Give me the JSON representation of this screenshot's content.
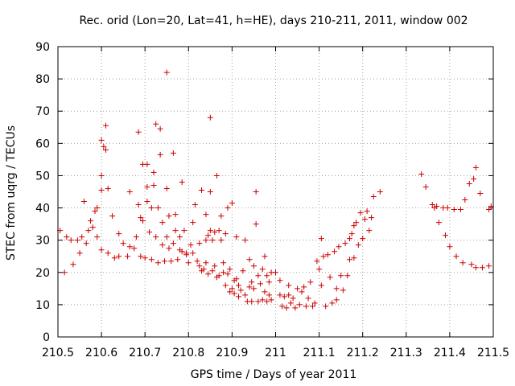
{
  "chart_data": {
    "type": "scatter",
    "title": "Rec. orid (Lon=20, Lat=41, h=HE), days 210-211, 2011, window 002",
    "xlabel": "GPS time / Days of year 2011",
    "ylabel": "STEC from uqrg / TECUs",
    "xlim": [
      210.5,
      211.5
    ],
    "ylim": [
      0,
      90
    ],
    "x_ticks": [
      "210.5",
      "210.6",
      "210.7",
      "210.8",
      "210.9",
      "211",
      "211.1",
      "211.2",
      "211.3",
      "211.4",
      "211.5"
    ],
    "y_ticks": [
      "0",
      "10",
      "20",
      "30",
      "40",
      "50",
      "60",
      "70",
      "80",
      "90"
    ],
    "grid": true,
    "marker": "plus",
    "color": "#cc0000",
    "points": [
      [
        210.505,
        33
      ],
      [
        210.515,
        20
      ],
      [
        210.52,
        31
      ],
      [
        210.53,
        30
      ],
      [
        210.535,
        22.5
      ],
      [
        210.545,
        30
      ],
      [
        210.55,
        26
      ],
      [
        210.555,
        31
      ],
      [
        210.56,
        42
      ],
      [
        210.565,
        29
      ],
      [
        210.57,
        33
      ],
      [
        210.575,
        36
      ],
      [
        210.58,
        34
      ],
      [
        210.585,
        39
      ],
      [
        210.59,
        31
      ],
      [
        210.59,
        40
      ],
      [
        210.6,
        27
      ],
      [
        210.6,
        45.5
      ],
      [
        210.6,
        50
      ],
      [
        210.6,
        61
      ],
      [
        210.605,
        59
      ],
      [
        210.61,
        65.5
      ],
      [
        210.61,
        58
      ],
      [
        210.615,
        46
      ],
      [
        210.615,
        26
      ],
      [
        210.625,
        37.5
      ],
      [
        210.63,
        24.5
      ],
      [
        210.64,
        25
      ],
      [
        210.64,
        32
      ],
      [
        210.65,
        29
      ],
      [
        210.66,
        25
      ],
      [
        210.665,
        45
      ],
      [
        210.665,
        28
      ],
      [
        210.675,
        27.5
      ],
      [
        210.68,
        31
      ],
      [
        210.685,
        41
      ],
      [
        210.685,
        63.5
      ],
      [
        210.69,
        25
      ],
      [
        210.69,
        37
      ],
      [
        210.695,
        53.5
      ],
      [
        210.695,
        36
      ],
      [
        210.7,
        24.5
      ],
      [
        210.705,
        46.5
      ],
      [
        210.705,
        42
      ],
      [
        210.705,
        53.5
      ],
      [
        210.71,
        32.5
      ],
      [
        210.715,
        24
      ],
      [
        210.715,
        40
      ],
      [
        210.72,
        47
      ],
      [
        210.72,
        51
      ],
      [
        210.725,
        31
      ],
      [
        210.725,
        66
      ],
      [
        210.73,
        40
      ],
      [
        210.73,
        23
      ],
      [
        210.735,
        64.5
      ],
      [
        210.735,
        56.5
      ],
      [
        210.74,
        28.5
      ],
      [
        210.74,
        35.5
      ],
      [
        210.745,
        23.5
      ],
      [
        210.75,
        82
      ],
      [
        210.75,
        46
      ],
      [
        210.75,
        31
      ],
      [
        210.755,
        37.5
      ],
      [
        210.755,
        27.5
      ],
      [
        210.76,
        23.5
      ],
      [
        210.765,
        57
      ],
      [
        210.765,
        29
      ],
      [
        210.77,
        33
      ],
      [
        210.77,
        38
      ],
      [
        210.775,
        24
      ],
      [
        210.78,
        27
      ],
      [
        210.78,
        31
      ],
      [
        210.785,
        48
      ],
      [
        210.785,
        26.5
      ],
      [
        210.79,
        33
      ],
      [
        210.795,
        25.5
      ],
      [
        210.795,
        26
      ],
      [
        210.8,
        23
      ],
      [
        210.805,
        28.5
      ],
      [
        210.81,
        26
      ],
      [
        210.81,
        35.5
      ],
      [
        210.815,
        41
      ],
      [
        210.82,
        23.5
      ],
      [
        210.825,
        22
      ],
      [
        210.825,
        29
      ],
      [
        210.83,
        45.5
      ],
      [
        210.83,
        20.5
      ],
      [
        210.835,
        21
      ],
      [
        210.84,
        30
      ],
      [
        210.84,
        23
      ],
      [
        210.84,
        38
      ],
      [
        210.845,
        31.5
      ],
      [
        210.845,
        19.5
      ],
      [
        210.85,
        68
      ],
      [
        210.85,
        45
      ],
      [
        210.85,
        33
      ],
      [
        210.855,
        20.5
      ],
      [
        210.855,
        30
      ],
      [
        210.86,
        22
      ],
      [
        210.86,
        32.5
      ],
      [
        210.865,
        50
      ],
      [
        210.865,
        18.5
      ],
      [
        210.87,
        33
      ],
      [
        210.87,
        19
      ],
      [
        210.875,
        30
      ],
      [
        210.875,
        37.5
      ],
      [
        210.88,
        23
      ],
      [
        210.88,
        20
      ],
      [
        210.885,
        16
      ],
      [
        210.885,
        32
      ],
      [
        210.89,
        19.5
      ],
      [
        210.89,
        40
      ],
      [
        210.895,
        14
      ],
      [
        210.895,
        21
      ],
      [
        210.9,
        15
      ],
      [
        210.9,
        41.5
      ],
      [
        210.905,
        13.5
      ],
      [
        210.905,
        17.5
      ],
      [
        210.91,
        18
      ],
      [
        210.91,
        31
      ],
      [
        210.915,
        12.5
      ],
      [
        210.915,
        16
      ],
      [
        210.92,
        14.5
      ],
      [
        210.925,
        20.5
      ],
      [
        210.93,
        30
      ],
      [
        210.93,
        13
      ],
      [
        210.935,
        11
      ],
      [
        210.94,
        24
      ],
      [
        210.94,
        15.5
      ],
      [
        210.945,
        17
      ],
      [
        210.945,
        11
      ],
      [
        210.95,
        22
      ],
      [
        210.95,
        15
      ],
      [
        210.955,
        45
      ],
      [
        210.955,
        35
      ],
      [
        210.96,
        11
      ],
      [
        210.96,
        19
      ],
      [
        210.965,
        16.5
      ],
      [
        210.97,
        21
      ],
      [
        210.97,
        11.5
      ],
      [
        210.975,
        25
      ],
      [
        210.975,
        14
      ],
      [
        210.98,
        11
      ],
      [
        210.98,
        19
      ],
      [
        210.985,
        17
      ],
      [
        210.985,
        13
      ],
      [
        210.99,
        20
      ],
      [
        210.99,
        11.5
      ],
      [
        211.0,
        20
      ],
      [
        211.01,
        17.5
      ],
      [
        211.01,
        13
      ],
      [
        211.015,
        9.5
      ],
      [
        211.02,
        12.5
      ],
      [
        211.025,
        9
      ],
      [
        211.03,
        13
      ],
      [
        211.03,
        16
      ],
      [
        211.035,
        10.5
      ],
      [
        211.04,
        12
      ],
      [
        211.045,
        9
      ],
      [
        211.05,
        15
      ],
      [
        211.055,
        10
      ],
      [
        211.06,
        14
      ],
      [
        211.065,
        15.5
      ],
      [
        211.07,
        9.5
      ],
      [
        211.075,
        12
      ],
      [
        211.08,
        17
      ],
      [
        211.085,
        9.5
      ],
      [
        211.09,
        10.5
      ],
      [
        211.095,
        23.5
      ],
      [
        211.1,
        21
      ],
      [
        211.105,
        16
      ],
      [
        211.105,
        30.5
      ],
      [
        211.11,
        25
      ],
      [
        211.115,
        9.5
      ],
      [
        211.12,
        25.5
      ],
      [
        211.125,
        18.5
      ],
      [
        211.13,
        10.5
      ],
      [
        211.135,
        26.5
      ],
      [
        211.14,
        15
      ],
      [
        211.14,
        11.5
      ],
      [
        211.145,
        28
      ],
      [
        211.15,
        19
      ],
      [
        211.155,
        14.5
      ],
      [
        211.16,
        29
      ],
      [
        211.165,
        19
      ],
      [
        211.17,
        30.5
      ],
      [
        211.17,
        24
      ],
      [
        211.175,
        32
      ],
      [
        211.18,
        24.5
      ],
      [
        211.18,
        34.5
      ],
      [
        211.185,
        35.5
      ],
      [
        211.19,
        28.5
      ],
      [
        211.195,
        38.5
      ],
      [
        211.2,
        30.5
      ],
      [
        211.205,
        36.5
      ],
      [
        211.21,
        39
      ],
      [
        211.215,
        33
      ],
      [
        211.22,
        37
      ],
      [
        211.225,
        43.5
      ],
      [
        211.24,
        45
      ],
      [
        211.335,
        50.5
      ],
      [
        211.345,
        46.5
      ],
      [
        211.36,
        41
      ],
      [
        211.365,
        40
      ],
      [
        211.37,
        40.5
      ],
      [
        211.375,
        35.5
      ],
      [
        211.385,
        40
      ],
      [
        211.39,
        31.5
      ],
      [
        211.395,
        40
      ],
      [
        211.4,
        28
      ],
      [
        211.41,
        39.5
      ],
      [
        211.415,
        25
      ],
      [
        211.425,
        39.5
      ],
      [
        211.43,
        23
      ],
      [
        211.435,
        42.5
      ],
      [
        211.445,
        47.5
      ],
      [
        211.45,
        22.5
      ],
      [
        211.455,
        49
      ],
      [
        211.46,
        52.5
      ],
      [
        211.46,
        21.5
      ],
      [
        211.47,
        44.5
      ],
      [
        211.475,
        21.5
      ],
      [
        211.49,
        22
      ],
      [
        211.49,
        39.5
      ],
      [
        211.495,
        40.5
      ]
    ]
  }
}
